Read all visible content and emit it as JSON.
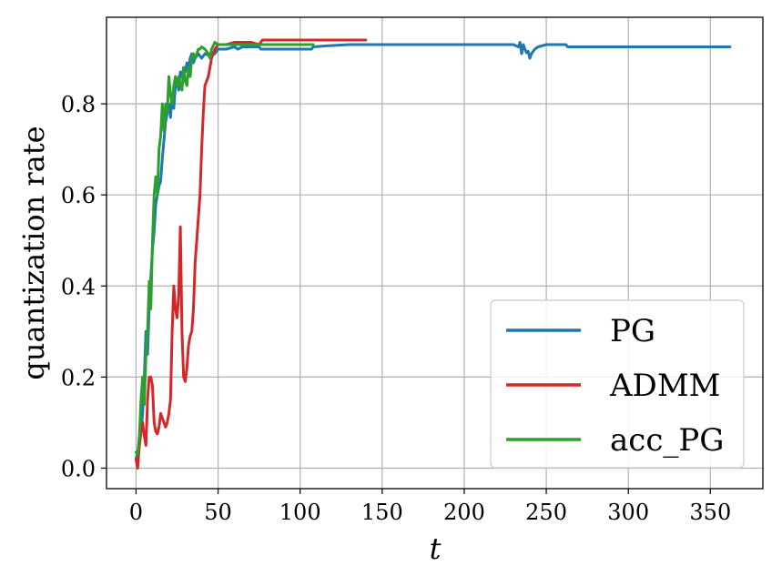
{
  "chart_data": {
    "type": "line",
    "title": "",
    "xlabel": "t",
    "ylabel": "quantization rate",
    "xlim": [
      -18,
      382
    ],
    "ylim": [
      -0.045,
      0.99
    ],
    "xticks": [
      0,
      50,
      100,
      150,
      200,
      250,
      300,
      350
    ],
    "yticks": [
      0.0,
      0.2,
      0.4,
      0.6,
      0.8
    ],
    "xtick_labels": [
      "0",
      "50",
      "100",
      "150",
      "200",
      "250",
      "300",
      "350"
    ],
    "ytick_labels": [
      "0.0",
      "0.2",
      "0.4",
      "0.6",
      "0.8"
    ],
    "grid": true,
    "legend_position": "lower-right",
    "series": [
      {
        "name": "PG",
        "color": "#1f77b4",
        "points": [
          [
            0,
            0.02
          ],
          [
            2,
            0.05
          ],
          [
            4,
            0.12
          ],
          [
            5,
            0.2
          ],
          [
            6,
            0.3
          ],
          [
            7,
            0.25
          ],
          [
            8,
            0.35
          ],
          [
            9,
            0.42
          ],
          [
            10,
            0.48
          ],
          [
            11,
            0.52
          ],
          [
            12,
            0.58
          ],
          [
            13,
            0.6
          ],
          [
            14,
            0.62
          ],
          [
            15,
            0.63
          ],
          [
            16,
            0.68
          ],
          [
            17,
            0.72
          ],
          [
            18,
            0.76
          ],
          [
            19,
            0.78
          ],
          [
            20,
            0.8
          ],
          [
            21,
            0.77
          ],
          [
            22,
            0.82
          ],
          [
            23,
            0.79
          ],
          [
            24,
            0.84
          ],
          [
            25,
            0.85
          ],
          [
            26,
            0.83
          ],
          [
            27,
            0.87
          ],
          [
            28,
            0.86
          ],
          [
            29,
            0.88
          ],
          [
            30,
            0.87
          ],
          [
            31,
            0.89
          ],
          [
            32,
            0.88
          ],
          [
            33,
            0.9
          ],
          [
            34,
            0.91
          ],
          [
            35,
            0.89
          ],
          [
            36,
            0.9
          ],
          [
            38,
            0.91
          ],
          [
            40,
            0.9
          ],
          [
            42,
            0.91
          ],
          [
            45,
            0.905
          ],
          [
            48,
            0.91
          ],
          [
            50,
            0.92
          ],
          [
            55,
            0.92
          ],
          [
            60,
            0.925
          ],
          [
            62,
            0.92
          ],
          [
            65,
            0.925
          ],
          [
            70,
            0.925
          ],
          [
            75,
            0.925
          ],
          [
            76,
            0.92
          ],
          [
            80,
            0.92
          ],
          [
            90,
            0.92
          ],
          [
            100,
            0.92
          ],
          [
            107,
            0.92
          ],
          [
            108,
            0.925
          ],
          [
            115,
            0.927
          ],
          [
            120,
            0.928
          ],
          [
            130,
            0.93
          ],
          [
            150,
            0.93
          ],
          [
            200,
            0.93
          ],
          [
            230,
            0.93
          ],
          [
            233,
            0.925
          ],
          [
            234,
            0.935
          ],
          [
            235,
            0.91
          ],
          [
            236,
            0.93
          ],
          [
            237,
            0.92
          ],
          [
            238,
            0.912
          ],
          [
            239,
            0.915
          ],
          [
            240,
            0.9
          ],
          [
            241,
            0.91
          ],
          [
            243,
            0.92
          ],
          [
            245,
            0.925
          ],
          [
            250,
            0.93
          ],
          [
            258,
            0.93
          ],
          [
            262,
            0.93
          ],
          [
            263,
            0.925
          ],
          [
            270,
            0.925
          ],
          [
            300,
            0.925
          ],
          [
            330,
            0.925
          ],
          [
            362,
            0.925
          ]
        ]
      },
      {
        "name": "ADMM",
        "color": "#d62728",
        "points": [
          [
            0,
            0.02
          ],
          [
            1,
            0.0
          ],
          [
            2,
            0.05
          ],
          [
            3,
            0.08
          ],
          [
            4,
            0.1
          ],
          [
            5,
            0.07
          ],
          [
            6,
            0.05
          ],
          [
            7,
            0.15
          ],
          [
            8,
            0.2
          ],
          [
            9,
            0.2
          ],
          [
            10,
            0.18
          ],
          [
            11,
            0.1
          ],
          [
            12,
            0.08
          ],
          [
            13,
            0.075
          ],
          [
            14,
            0.09
          ],
          [
            15,
            0.12
          ],
          [
            16,
            0.11
          ],
          [
            17,
            0.1
          ],
          [
            18,
            0.09
          ],
          [
            19,
            0.1
          ],
          [
            20,
            0.12
          ],
          [
            21,
            0.15
          ],
          [
            22,
            0.3
          ],
          [
            23,
            0.4
          ],
          [
            24,
            0.35
          ],
          [
            25,
            0.33
          ],
          [
            26,
            0.38
          ],
          [
            27,
            0.53
          ],
          [
            28,
            0.3
          ],
          [
            29,
            0.2
          ],
          [
            30,
            0.19
          ],
          [
            31,
            0.22
          ],
          [
            32,
            0.27
          ],
          [
            33,
            0.29
          ],
          [
            34,
            0.3
          ],
          [
            35,
            0.35
          ],
          [
            36,
            0.45
          ],
          [
            37,
            0.5
          ],
          [
            38,
            0.55
          ],
          [
            39,
            0.6
          ],
          [
            40,
            0.7
          ],
          [
            41,
            0.78
          ],
          [
            42,
            0.84
          ],
          [
            43,
            0.85
          ],
          [
            44,
            0.86
          ],
          [
            45,
            0.88
          ],
          [
            46,
            0.9
          ],
          [
            47,
            0.91
          ],
          [
            48,
            0.92
          ],
          [
            50,
            0.93
          ],
          [
            55,
            0.93
          ],
          [
            60,
            0.935
          ],
          [
            70,
            0.935
          ],
          [
            75,
            0.93
          ],
          [
            77,
            0.94
          ],
          [
            100,
            0.94
          ],
          [
            120,
            0.94
          ],
          [
            140,
            0.94
          ]
        ]
      },
      {
        "name": "acc_PG",
        "color": "#2ca02c",
        "points": [
          [
            0,
            0.035
          ],
          [
            1,
            0.03
          ],
          [
            2,
            0.07
          ],
          [
            3,
            0.15
          ],
          [
            4,
            0.2
          ],
          [
            5,
            0.14
          ],
          [
            6,
            0.25
          ],
          [
            7,
            0.3
          ],
          [
            8,
            0.41
          ],
          [
            9,
            0.35
          ],
          [
            10,
            0.5
          ],
          [
            11,
            0.6
          ],
          [
            12,
            0.64
          ],
          [
            13,
            0.6
          ],
          [
            14,
            0.7
          ],
          [
            15,
            0.73
          ],
          [
            16,
            0.8
          ],
          [
            17,
            0.74
          ],
          [
            18,
            0.8
          ],
          [
            19,
            0.78
          ],
          [
            20,
            0.86
          ],
          [
            21,
            0.82
          ],
          [
            22,
            0.8
          ],
          [
            23,
            0.84
          ],
          [
            24,
            0.86
          ],
          [
            25,
            0.84
          ],
          [
            26,
            0.86
          ],
          [
            27,
            0.84
          ],
          [
            28,
            0.83
          ],
          [
            29,
            0.88
          ],
          [
            30,
            0.85
          ],
          [
            31,
            0.84
          ],
          [
            32,
            0.88
          ],
          [
            33,
            0.86
          ],
          [
            34,
            0.9
          ],
          [
            35,
            0.91
          ],
          [
            36,
            0.9
          ],
          [
            37,
            0.91
          ],
          [
            38,
            0.92
          ],
          [
            39,
            0.92
          ],
          [
            40,
            0.925
          ],
          [
            42,
            0.92
          ],
          [
            44,
            0.91
          ],
          [
            45,
            0.9
          ],
          [
            46,
            0.92
          ],
          [
            48,
            0.935
          ],
          [
            50,
            0.93
          ],
          [
            60,
            0.93
          ],
          [
            80,
            0.93
          ],
          [
            100,
            0.93
          ],
          [
            108,
            0.93
          ]
        ]
      }
    ]
  }
}
